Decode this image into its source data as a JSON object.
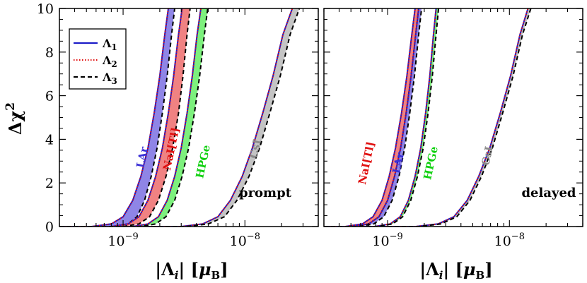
{
  "chart_data": [
    {
      "type": "area",
      "panel": "prompt",
      "xscale": "log",
      "xlim": [
        3e-10,
        4e-08
      ],
      "ylim": [
        0,
        10
      ],
      "xlabel": "|Λi| [μB]",
      "ylabel": "Δχ²",
      "xticks": [
        {
          "value": 1e-09,
          "base": "10",
          "exp": "−9"
        },
        {
          "value": 1e-08,
          "base": "10",
          "exp": "−8"
        }
      ],
      "yticks": [
        0,
        2,
        4,
        6,
        8,
        10
      ],
      "panel_label": "prompt",
      "legend": {
        "position": "top-left",
        "entries": [
          {
            "label": "Λ",
            "sub": "1",
            "color": "#1c1cc8",
            "dash": "solid"
          },
          {
            "label": "Λ",
            "sub": "2",
            "color": "#e01010",
            "dash": "dotted"
          },
          {
            "label": "Λ",
            "sub": "3",
            "color": "#000000",
            "dash": "dashed"
          }
        ]
      },
      "series": [
        {
          "name": "LAr",
          "fill": "#8f85e6",
          "label_color": "#3a2fd6",
          "lower": {
            "x": [
              5.5e-10,
              8e-10,
              1e-09,
              1.2e-09,
              1.4e-09,
              1.6e-09,
              1.8e-09,
              2e-09,
              2.2e-09,
              2.35e-09
            ],
            "y": [
              0,
              0.12,
              0.45,
              1.2,
              2.3,
              3.6,
              5.2,
              6.9,
              8.8,
              10
            ]
          },
          "upper": {
            "x": [
              8e-10,
              1.1e-09,
              1.3e-09,
              1.5e-09,
              1.7e-09,
              1.9e-09,
              2.1e-09,
              2.3e-09,
              2.5e-09,
              2.65e-09
            ],
            "y": [
              0,
              0.12,
              0.45,
              1.2,
              2.3,
              3.6,
              5.2,
              6.9,
              8.8,
              10
            ]
          }
        },
        {
          "name": "NaI[Tl]",
          "fill": "#f08282",
          "label_color": "#e01010",
          "lower": {
            "x": [
              8e-10,
              1.1e-09,
              1.35e-09,
              1.6e-09,
              1.85e-09,
              2.1e-09,
              2.35e-09,
              2.6e-09,
              2.85e-09,
              3.05e-09
            ],
            "y": [
              0,
              0.12,
              0.45,
              1.2,
              2.3,
              3.6,
              5.2,
              6.9,
              8.8,
              10
            ]
          },
          "upper": {
            "x": [
              1e-09,
              1.35e-09,
              1.65e-09,
              1.95e-09,
              2.25e-09,
              2.55e-09,
              2.85e-09,
              3.1e-09,
              3.35e-09,
              3.55e-09
            ],
            "y": [
              0,
              0.12,
              0.45,
              1.2,
              2.3,
              3.6,
              5.2,
              6.9,
              8.8,
              10
            ]
          }
        },
        {
          "name": "HPGe",
          "fill": "#7df07d",
          "label_color": "#10d010",
          "lower": {
            "x": [
              1.2e-09,
              1.6e-09,
              1.95e-09,
              2.3e-09,
              2.65e-09,
              3e-09,
              3.35e-09,
              3.7e-09,
              4.05e-09,
              4.35e-09
            ],
            "y": [
              0,
              0.12,
              0.45,
              1.2,
              2.3,
              3.6,
              5.2,
              6.9,
              8.8,
              10
            ]
          },
          "upper": {
            "x": [
              1.4e-09,
              1.85e-09,
              2.25e-09,
              2.65e-09,
              3.05e-09,
              3.45e-09,
              3.85e-09,
              4.25e-09,
              4.65e-09,
              4.95e-09
            ],
            "y": [
              0,
              0.12,
              0.45,
              1.2,
              2.3,
              3.6,
              5.2,
              6.9,
              8.8,
              10
            ]
          }
        },
        {
          "name": "CsI",
          "fill": "#c4c4c4",
          "label_color": "#8a8a8a",
          "lower": {
            "x": [
              3e-09,
              4.5e-09,
              6e-09,
              7.6e-09,
              9.5e-09,
              1.15e-08,
              1.4e-08,
              1.7e-08,
              2.05e-08,
              2.45e-08
            ],
            "y": [
              0,
              0.12,
              0.45,
              1.2,
              2.3,
              3.6,
              5.2,
              6.9,
              8.8,
              10
            ]
          },
          "upper": {
            "x": [
              3.3e-09,
              5e-09,
              6.8e-09,
              8.6e-09,
              1.08e-08,
              1.32e-08,
              1.6e-08,
              1.95e-08,
              2.35e-08,
              2.8e-08
            ],
            "y": [
              0,
              0.12,
              0.45,
              1.2,
              2.3,
              3.6,
              5.2,
              6.9,
              8.8,
              10
            ]
          }
        }
      ]
    },
    {
      "type": "line",
      "panel": "delayed",
      "xscale": "log",
      "xlim": [
        3e-10,
        4e-08
      ],
      "ylim": [
        0,
        10
      ],
      "xlabel": "|Λi| [μB]",
      "xticks": [
        {
          "value": 1e-09,
          "base": "10",
          "exp": "−9"
        },
        {
          "value": 1e-08,
          "base": "10",
          "exp": "−8"
        }
      ],
      "yticks": [
        0,
        2,
        4,
        6,
        8,
        10
      ],
      "panel_label": "delayed",
      "series": [
        {
          "name": "NaI[Tl]",
          "fill": "#f08282",
          "label_color": "#e01010",
          "lower": {
            "x": [
              4.5e-10,
              6.2e-10,
              7.6e-10,
              9e-10,
              1.03e-09,
              1.16e-09,
              1.3e-09,
              1.44e-09,
              1.58e-09,
              1.68e-09
            ],
            "y": [
              0,
              0.12,
              0.45,
              1.2,
              2.3,
              3.6,
              5.2,
              6.9,
              8.8,
              10
            ]
          },
          "upper": {
            "x": [
              5.2e-10,
              7e-10,
              8.5e-10,
              1e-09,
              1.14e-09,
              1.28e-09,
              1.42e-09,
              1.56e-09,
              1.7e-09,
              1.8e-09
            ],
            "y": [
              0,
              0.12,
              0.45,
              1.2,
              2.3,
              3.6,
              5.2,
              6.9,
              8.8,
              10
            ]
          }
        },
        {
          "name": "LAr",
          "fill": "#8f85e6",
          "label_color": "#3a2fd6",
          "lower": {
            "x": [
              5.2e-10,
              7e-10,
              8.5e-10,
              1e-09,
              1.14e-09,
              1.28e-09,
              1.42e-09,
              1.56e-09,
              1.7e-09,
              1.8e-09
            ],
            "y": [
              0,
              0.12,
              0.45,
              1.2,
              2.3,
              3.6,
              5.2,
              6.9,
              8.8,
              10
            ]
          },
          "upper": {
            "x": [
              5.8e-10,
              7.7e-10,
              9.3e-10,
              1.09e-09,
              1.24e-09,
              1.38e-09,
              1.52e-09,
              1.66e-09,
              1.8e-09,
              1.9e-09
            ],
            "y": [
              0,
              0.12,
              0.45,
              1.2,
              2.3,
              3.6,
              5.2,
              6.9,
              8.8,
              10
            ]
          }
        },
        {
          "name": "HPGe",
          "fill": "#7df07d",
          "label_color": "#10d010",
          "lower": {
            "x": [
              7.8e-10,
              1.05e-09,
              1.27e-09,
              1.48e-09,
              1.68e-09,
              1.87e-09,
              2.05e-09,
              2.22e-09,
              2.38e-09,
              2.5e-09
            ],
            "y": [
              0,
              0.12,
              0.45,
              1.2,
              2.3,
              3.6,
              5.2,
              6.9,
              8.8,
              10
            ]
          },
          "upper": {
            "x": [
              8.2e-10,
              1.1e-09,
              1.33e-09,
              1.55e-09,
              1.76e-09,
              1.96e-09,
              2.15e-09,
              2.33e-09,
              2.5e-09,
              2.62e-09
            ],
            "y": [
              0,
              0.12,
              0.45,
              1.2,
              2.3,
              3.6,
              5.2,
              6.9,
              8.8,
              10
            ]
          }
        },
        {
          "name": "CsI",
          "fill": "#c4c4c4",
          "label_color": "#8a8a8a",
          "lower": {
            "x": [
              1.7e-09,
              2.6e-09,
              3.5e-09,
              4.5e-09,
              5.6e-09,
              6.9e-09,
              8.4e-09,
              1.02e-08,
              1.22e-08,
              1.42e-08
            ],
            "y": [
              0,
              0.12,
              0.45,
              1.2,
              2.3,
              3.6,
              5.2,
              6.9,
              8.8,
              10
            ]
          },
          "upper": {
            "x": [
              1.8e-09,
              2.75e-09,
              3.7e-09,
              4.75e-09,
              5.9e-09,
              7.25e-09,
              8.8e-09,
              1.07e-08,
              1.28e-08,
              1.5e-08
            ],
            "y": [
              0,
              0.12,
              0.45,
              1.2,
              2.3,
              3.6,
              5.2,
              6.9,
              8.8,
              10
            ]
          }
        }
      ]
    }
  ]
}
